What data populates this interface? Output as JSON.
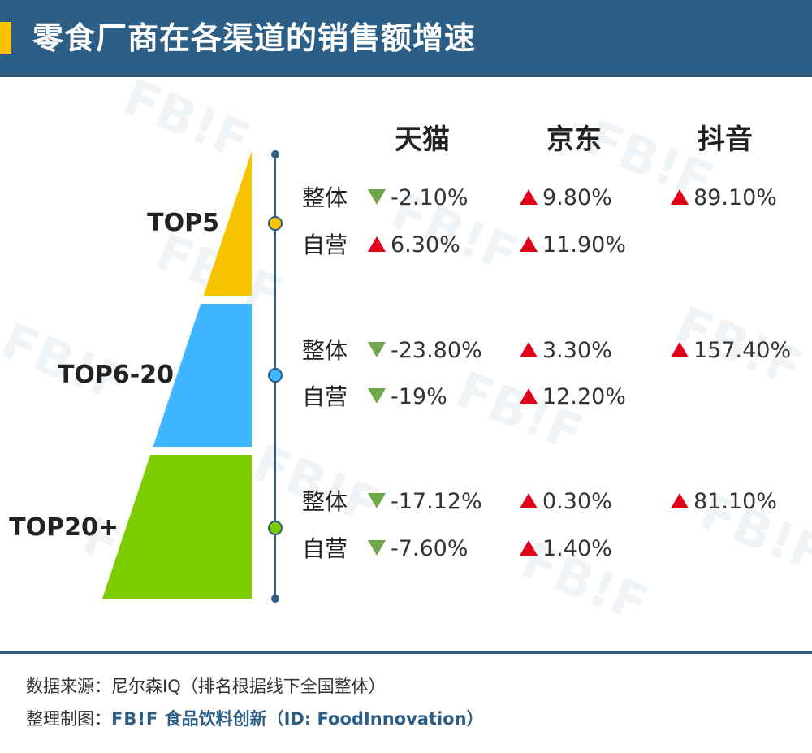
{
  "title": "零食厂商在各渠道的销售额增速",
  "watermark_text": "FB!F",
  "chart_data": {
    "type": "table",
    "channels": [
      "天猫",
      "京东",
      "抖音"
    ],
    "tiers": [
      {
        "name": "TOP5",
        "color": "#f8c400",
        "rows": [
          {
            "label": "整体",
            "values": [
              -2.1,
              9.8,
              89.1
            ],
            "display": [
              "-2.10%",
              "9.80%",
              "89.10%"
            ]
          },
          {
            "label": "自营",
            "values": [
              6.3,
              11.9,
              null
            ],
            "display": [
              "6.30%",
              "11.90%",
              ""
            ]
          }
        ]
      },
      {
        "name": "TOP6-20",
        "color": "#3db5ff",
        "rows": [
          {
            "label": "整体",
            "values": [
              -23.8,
              3.3,
              157.4
            ],
            "display": [
              "-23.80%",
              "3.30%",
              "157.40%"
            ]
          },
          {
            "label": "自营",
            "values": [
              -19,
              12.2,
              null
            ],
            "display": [
              "-19%",
              "12.20%",
              ""
            ]
          }
        ]
      },
      {
        "name": "TOP20+",
        "color": "#7dcc00",
        "rows": [
          {
            "label": "整体",
            "values": [
              -17.12,
              0.3,
              81.1
            ],
            "display": [
              "-17.12%",
              "0.30%",
              "81.10%"
            ]
          },
          {
            "label": "自营",
            "values": [
              -7.6,
              1.4,
              null
            ],
            "display": [
              "-7.60%",
              "1.40%",
              ""
            ]
          }
        ]
      }
    ],
    "up_color": "#e00018",
    "down_color": "#6ea84a",
    "timeline_color": "#2c5e86"
  },
  "footer": {
    "source": "数据来源：尼尔森IQ（排名根据线下全国整体）",
    "credit_prefix": "整理制图：",
    "brand_logo": "FB!F",
    "brand_name": "食品饮料创新（ID: FoodInnovation）"
  }
}
